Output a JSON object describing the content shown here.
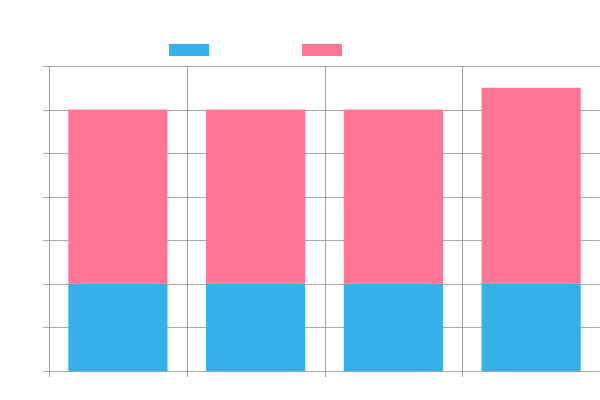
{
  "chart_data": {
    "type": "bar",
    "stacked": true,
    "title": "",
    "xlabel": "",
    "ylabel": "",
    "categories": [
      "",
      "",
      "",
      ""
    ],
    "series": [
      {
        "color": "#36b0e8",
        "values": [
          2,
          2,
          2,
          2
        ]
      },
      {
        "color": "#ff7593",
        "values": [
          4,
          4,
          4,
          4.5
        ]
      }
    ],
    "ylim": [
      0,
      7
    ],
    "grid": true,
    "legend": "top"
  }
}
